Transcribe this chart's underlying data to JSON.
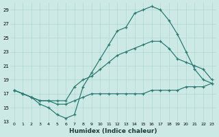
{
  "title": "",
  "xlabel": "Humidex (Indice chaleur)",
  "ylabel": "",
  "bg_color": "#cce9e5",
  "line_color": "#2a7a72",
  "xlim": [
    -0.5,
    23.5
  ],
  "ylim": [
    13,
    30
  ],
  "yticks": [
    13,
    15,
    17,
    19,
    21,
    23,
    25,
    27,
    29
  ],
  "xticks": [
    0,
    1,
    2,
    3,
    4,
    5,
    6,
    7,
    8,
    9,
    10,
    11,
    12,
    13,
    14,
    15,
    16,
    17,
    18,
    19,
    20,
    21,
    22,
    23
  ],
  "grid_color": "#b0d8d2",
  "curves": [
    {
      "x": [
        0,
        1,
        2,
        3,
        4,
        5,
        6,
        7,
        8,
        9,
        10,
        11,
        12,
        13,
        14,
        15,
        16,
        17,
        18,
        19,
        20,
        21,
        22,
        23
      ],
      "y": [
        17.5,
        17.0,
        16.5,
        15.5,
        15.0,
        14.0,
        13.5,
        14.0,
        18.0,
        20.0,
        22.0,
        24.0,
        26.0,
        26.5,
        28.5,
        29.0,
        29.5,
        29.0,
        27.5,
        25.5,
        23.0,
        20.5,
        19.0,
        18.5
      ]
    },
    {
      "x": [
        0,
        1,
        2,
        3,
        4,
        5,
        6,
        7,
        8,
        9,
        10,
        11,
        12,
        13,
        14,
        15,
        16,
        17,
        18,
        19,
        20,
        21,
        22,
        23
      ],
      "y": [
        17.5,
        17.0,
        16.5,
        16.0,
        16.0,
        16.0,
        16.0,
        18.0,
        19.0,
        19.5,
        20.5,
        21.5,
        22.5,
        23.0,
        23.5,
        24.0,
        24.5,
        24.5,
        23.5,
        22.0,
        21.5,
        21.0,
        20.5,
        19.0
      ]
    },
    {
      "x": [
        0,
        1,
        2,
        3,
        4,
        5,
        6,
        7,
        8,
        9,
        10,
        11,
        12,
        13,
        14,
        15,
        16,
        17,
        18,
        19,
        20,
        21,
        22,
        23
      ],
      "y": [
        17.5,
        17.0,
        16.5,
        16.0,
        16.0,
        15.5,
        15.5,
        16.0,
        16.5,
        17.0,
        17.0,
        17.0,
        17.0,
        17.0,
        17.0,
        17.0,
        17.5,
        17.5,
        17.5,
        17.5,
        18.0,
        18.0,
        18.0,
        18.5
      ]
    }
  ]
}
